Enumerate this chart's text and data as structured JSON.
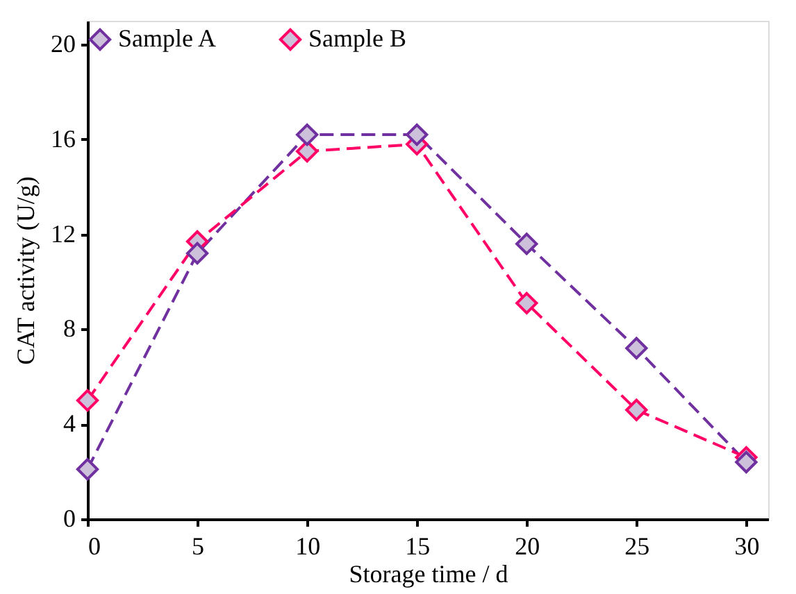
{
  "chart_data": {
    "type": "line",
    "xlabel": "Storage time / d",
    "ylabel": "CAT activity (U/g)",
    "x": [
      0,
      5,
      10,
      15,
      20,
      25,
      30
    ],
    "series": [
      {
        "name": "Sample A",
        "color": "#7030a0",
        "values": [
          2.1,
          11.2,
          16.2,
          16.2,
          11.6,
          7.2,
          2.4
        ]
      },
      {
        "name": "Sample B",
        "color": "#ff0066",
        "values": [
          5.0,
          11.7,
          15.5,
          15.8,
          9.1,
          4.6,
          2.6
        ]
      }
    ],
    "xlim": [
      0,
      31
    ],
    "xticks": [
      0,
      5,
      10,
      15,
      20,
      25,
      30
    ],
    "ylim": [
      0,
      21
    ],
    "yticks": [
      0,
      4,
      8,
      12,
      16,
      20
    ],
    "grid": false,
    "legend": "top",
    "marker": "diamond",
    "line_style": "dashed"
  }
}
